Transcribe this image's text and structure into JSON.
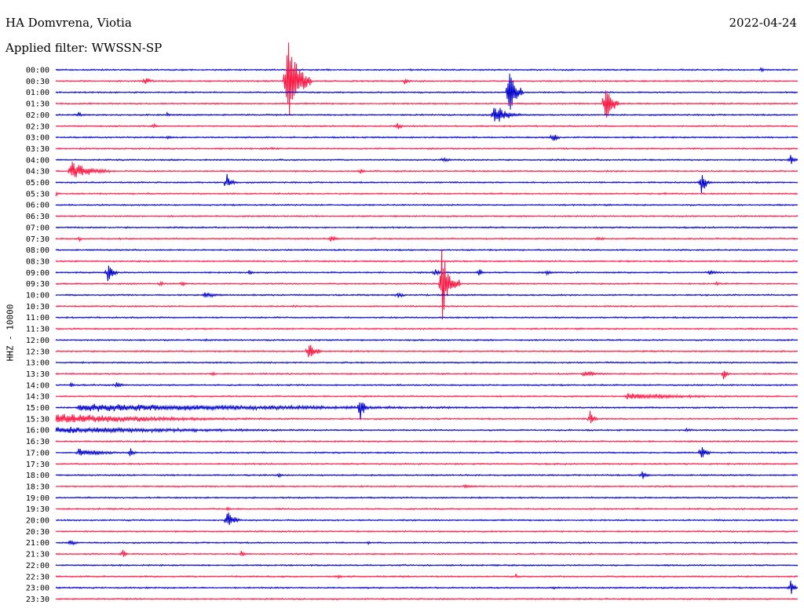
{
  "header": {
    "station": "HA Domvrena, Viotia",
    "date": "2022-04-24",
    "filter": "Applied filter: WWSSN-SP"
  },
  "chart_data": {
    "type": "line",
    "ylabel": "HHZ - 10000",
    "colors": {
      "even_row": "#0000cc",
      "odd_row": "#ff1744"
    },
    "rows": [
      {
        "label": "00:00",
        "events": [
          {
            "t": 0.95,
            "a": 4,
            "d": 0.01
          }
        ]
      },
      {
        "label": "00:30",
        "events": [
          {
            "t": 0.12,
            "a": 8,
            "d": 0.015
          },
          {
            "t": 0.31,
            "a": 75,
            "d": 0.035
          },
          {
            "t": 0.47,
            "a": 6,
            "d": 0.015
          }
        ]
      },
      {
        "label": "01:00",
        "events": [
          {
            "t": 0.61,
            "a": 50,
            "d": 0.02
          }
        ]
      },
      {
        "label": "01:30",
        "events": [
          {
            "t": 0.74,
            "a": 40,
            "d": 0.02
          }
        ]
      },
      {
        "label": "02:00",
        "events": [
          {
            "t": 0.03,
            "a": 5,
            "d": 0.01
          },
          {
            "t": 0.15,
            "a": 4,
            "d": 0.01
          },
          {
            "t": 0.59,
            "a": 18,
            "d": 0.04
          }
        ]
      },
      {
        "label": "02:30",
        "events": [
          {
            "t": 0.13,
            "a": 6,
            "d": 0.01
          },
          {
            "t": 0.46,
            "a": 8,
            "d": 0.01
          }
        ]
      },
      {
        "label": "03:00",
        "events": [
          {
            "t": 0.15,
            "a": 4,
            "d": 0.01
          },
          {
            "t": 0.67,
            "a": 12,
            "d": 0.01
          }
        ]
      },
      {
        "label": "03:30",
        "events": [
          {
            "t": 0.29,
            "a": 3,
            "d": 0.01
          }
        ]
      },
      {
        "label": "04:00",
        "events": [
          {
            "t": 0.52,
            "a": 4,
            "d": 0.03
          },
          {
            "t": 0.99,
            "a": 8,
            "d": 0.02
          }
        ]
      },
      {
        "label": "04:30",
        "events": [
          {
            "t": 0.02,
            "a": 18,
            "d": 0.06
          },
          {
            "t": 0.41,
            "a": 6,
            "d": 0.01
          }
        ]
      },
      {
        "label": "05:00",
        "events": [
          {
            "t": 0.23,
            "a": 16,
            "d": 0.015
          },
          {
            "t": 0.87,
            "a": 18,
            "d": 0.015
          }
        ]
      },
      {
        "label": "05:30",
        "events": [
          {
            "t": 0.0,
            "a": 4,
            "d": 0.01
          },
          {
            "t": 0.82,
            "a": 3,
            "d": 0.01
          }
        ]
      },
      {
        "label": "06:00",
        "events": []
      },
      {
        "label": "06:30",
        "events": []
      },
      {
        "label": "07:00",
        "events": []
      },
      {
        "label": "07:30",
        "events": [
          {
            "t": 0.03,
            "a": 5,
            "d": 0.01
          },
          {
            "t": 0.37,
            "a": 6,
            "d": 0.02
          },
          {
            "t": 0.73,
            "a": 4,
            "d": 0.02
          }
        ]
      },
      {
        "label": "08:00",
        "events": []
      },
      {
        "label": "08:30",
        "events": []
      },
      {
        "label": "09:00",
        "events": [
          {
            "t": 0.07,
            "a": 20,
            "d": 0.015
          },
          {
            "t": 0.26,
            "a": 4,
            "d": 0.01
          },
          {
            "t": 0.51,
            "a": 6,
            "d": 0.02
          },
          {
            "t": 0.57,
            "a": 8,
            "d": 0.01
          },
          {
            "t": 0.66,
            "a": 5,
            "d": 0.02
          },
          {
            "t": 0.88,
            "a": 6,
            "d": 0.02
          }
        ]
      },
      {
        "label": "09:30",
        "events": [
          {
            "t": 0.14,
            "a": 5,
            "d": 0.01
          },
          {
            "t": 0.17,
            "a": 6,
            "d": 0.01
          },
          {
            "t": 0.52,
            "a": 60,
            "d": 0.025
          },
          {
            "t": 0.89,
            "a": 4,
            "d": 0.01
          }
        ]
      },
      {
        "label": "10:00",
        "events": [
          {
            "t": 0.2,
            "a": 5,
            "d": 0.04
          },
          {
            "t": 0.46,
            "a": 6,
            "d": 0.02
          }
        ]
      },
      {
        "label": "10:30",
        "events": [
          {
            "t": 0.32,
            "a": 3,
            "d": 0.01
          }
        ]
      },
      {
        "label": "11:00",
        "events": []
      },
      {
        "label": "11:30",
        "events": []
      },
      {
        "label": "12:00",
        "events": [
          {
            "t": 0.2,
            "a": 3,
            "d": 0.01
          }
        ]
      },
      {
        "label": "12:30",
        "events": [
          {
            "t": 0.34,
            "a": 20,
            "d": 0.02
          }
        ]
      },
      {
        "label": "13:00",
        "events": []
      },
      {
        "label": "13:30",
        "events": [
          {
            "t": 0.21,
            "a": 4,
            "d": 0.01
          },
          {
            "t": 0.71,
            "a": 5,
            "d": 0.05
          },
          {
            "t": 0.9,
            "a": 10,
            "d": 0.01
          }
        ]
      },
      {
        "label": "14:00",
        "events": [
          {
            "t": 0.02,
            "a": 4,
            "d": 0.01
          },
          {
            "t": 0.08,
            "a": 5,
            "d": 0.03
          }
        ]
      },
      {
        "label": "14:30",
        "events": [
          {
            "t": 0.77,
            "a": 5,
            "d": 0.23
          }
        ]
      },
      {
        "label": "15:00",
        "events": [
          {
            "t": 0.03,
            "a": 6,
            "d": 0.97
          },
          {
            "t": 0.41,
            "a": 30,
            "d": 0.01
          }
        ]
      },
      {
        "label": "15:30",
        "events": [
          {
            "t": 0.0,
            "a": 8,
            "d": 0.4
          },
          {
            "t": 0.72,
            "a": 16,
            "d": 0.01
          }
        ]
      },
      {
        "label": "16:00",
        "events": [
          {
            "t": 0.0,
            "a": 5,
            "d": 0.6
          },
          {
            "t": 0.85,
            "a": 4,
            "d": 0.01
          }
        ]
      },
      {
        "label": "16:30",
        "events": []
      },
      {
        "label": "17:00",
        "events": [
          {
            "t": 0.03,
            "a": 6,
            "d": 0.1
          },
          {
            "t": 0.1,
            "a": 8,
            "d": 0.01
          },
          {
            "t": 0.87,
            "a": 12,
            "d": 0.015
          }
        ]
      },
      {
        "label": "17:30",
        "events": []
      },
      {
        "label": "18:00",
        "events": [
          {
            "t": 0.3,
            "a": 5,
            "d": 0.01
          },
          {
            "t": 0.79,
            "a": 8,
            "d": 0.015
          }
        ]
      },
      {
        "label": "18:30",
        "events": [
          {
            "t": 0.55,
            "a": 3,
            "d": 0.05
          }
        ]
      },
      {
        "label": "19:00",
        "events": []
      },
      {
        "label": "19:30",
        "events": [
          {
            "t": 0.23,
            "a": 4,
            "d": 0.01
          }
        ]
      },
      {
        "label": "20:00",
        "events": [
          {
            "t": 0.23,
            "a": 18,
            "d": 0.02
          }
        ]
      },
      {
        "label": "20:30",
        "events": []
      },
      {
        "label": "21:00",
        "events": [
          {
            "t": 0.02,
            "a": 8,
            "d": 0.01
          },
          {
            "t": 0.42,
            "a": 3,
            "d": 0.01
          }
        ]
      },
      {
        "label": "21:30",
        "events": [
          {
            "t": 0.09,
            "a": 8,
            "d": 0.01
          },
          {
            "t": 0.25,
            "a": 6,
            "d": 0.01
          }
        ]
      },
      {
        "label": "22:00",
        "events": []
      },
      {
        "label": "22:30",
        "events": [
          {
            "t": 0.38,
            "a": 4,
            "d": 0.01
          },
          {
            "t": 0.62,
            "a": 4,
            "d": 0.01
          }
        ]
      },
      {
        "label": "23:00",
        "events": [
          {
            "t": 0.67,
            "a": 3,
            "d": 0.01
          },
          {
            "t": 0.99,
            "a": 14,
            "d": 0.01
          }
        ]
      },
      {
        "label": "23:30",
        "events": []
      }
    ]
  }
}
